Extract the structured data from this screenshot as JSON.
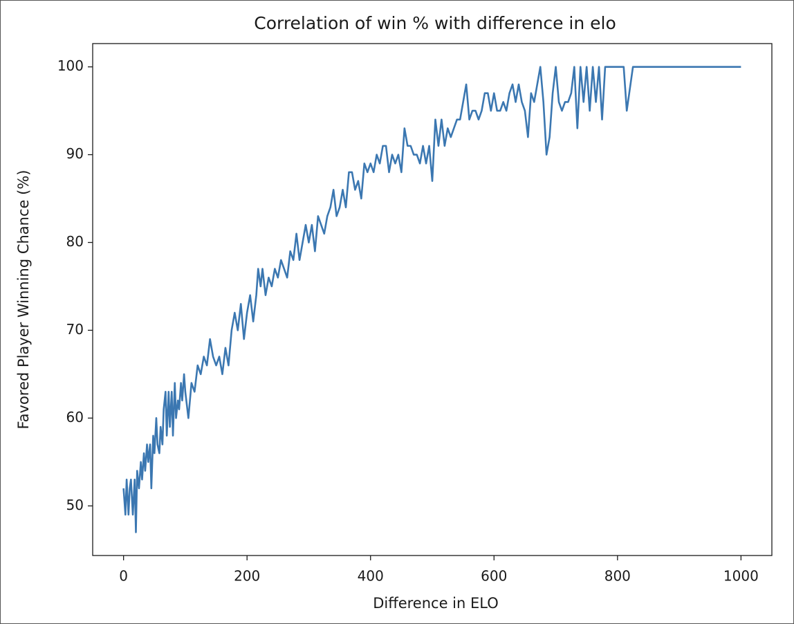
{
  "chart_data": {
    "type": "line",
    "title": "Correlation of win % with difference in elo",
    "xlabel": "Difference in ELO",
    "ylabel": "Favored Player Winning Chance (%)",
    "color": "#3b77b1",
    "xlim": [
      -50,
      1050
    ],
    "ylim": [
      44.35,
      102.65
    ],
    "xticks": [
      0,
      200,
      400,
      600,
      800,
      1000
    ],
    "yticks": [
      50,
      60,
      70,
      80,
      90,
      100
    ],
    "x": [
      0,
      3,
      5,
      8,
      10,
      12,
      15,
      18,
      20,
      22,
      25,
      28,
      30,
      33,
      35,
      38,
      40,
      43,
      45,
      48,
      50,
      53,
      55,
      58,
      60,
      63,
      65,
      68,
      70,
      73,
      75,
      78,
      80,
      83,
      85,
      88,
      90,
      93,
      95,
      98,
      100,
      105,
      110,
      115,
      120,
      125,
      130,
      135,
      140,
      145,
      150,
      155,
      160,
      165,
      170,
      175,
      180,
      185,
      190,
      195,
      200,
      205,
      210,
      215,
      218,
      222,
      225,
      230,
      235,
      240,
      245,
      250,
      255,
      260,
      265,
      270,
      275,
      280,
      285,
      290,
      295,
      300,
      305,
      310,
      315,
      320,
      325,
      330,
      335,
      340,
      345,
      350,
      355,
      360,
      365,
      370,
      375,
      380,
      385,
      390,
      395,
      400,
      405,
      410,
      415,
      420,
      425,
      430,
      435,
      440,
      445,
      450,
      455,
      460,
      465,
      470,
      475,
      480,
      485,
      490,
      495,
      500,
      505,
      510,
      515,
      520,
      525,
      530,
      535,
      540,
      545,
      550,
      555,
      560,
      565,
      570,
      575,
      580,
      585,
      590,
      595,
      600,
      605,
      610,
      615,
      620,
      625,
      630,
      635,
      640,
      645,
      650,
      655,
      660,
      665,
      670,
      675,
      680,
      685,
      690,
      695,
      700,
      705,
      710,
      715,
      720,
      725,
      730,
      735,
      740,
      745,
      750,
      755,
      760,
      765,
      770,
      775,
      780,
      790,
      800,
      810,
      815,
      825,
      840,
      1000
    ],
    "values": [
      52,
      49,
      53,
      49,
      52,
      53,
      49,
      53,
      47,
      54,
      52,
      55,
      53,
      56,
      54,
      57,
      55,
      57,
      52,
      58,
      56,
      60,
      57,
      56,
      59,
      57,
      61,
      63,
      58,
      63,
      59,
      63,
      58,
      64,
      60,
      62,
      61,
      64,
      62,
      65,
      63,
      60,
      64,
      63,
      66,
      65,
      67,
      66,
      69,
      67,
      66,
      67,
      65,
      68,
      66,
      70,
      72,
      70,
      73,
      69,
      72,
      74,
      71,
      74,
      77,
      75,
      77,
      74,
      76,
      75,
      77,
      76,
      78,
      77,
      76,
      79,
      78,
      81,
      78,
      80,
      82,
      80,
      82,
      79,
      83,
      82,
      81,
      83,
      84,
      86,
      83,
      84,
      86,
      84,
      88,
      88,
      86,
      87,
      85,
      89,
      88,
      89,
      88,
      90,
      89,
      91,
      91,
      88,
      90,
      89,
      90,
      88,
      93,
      91,
      91,
      90,
      90,
      89,
      91,
      89,
      91,
      87,
      94,
      91,
      94,
      91,
      93,
      92,
      93,
      94,
      94,
      96,
      98,
      94,
      95,
      95,
      94,
      95,
      97,
      97,
      95,
      97,
      95,
      95,
      96,
      95,
      97,
      98,
      96,
      98,
      96,
      95,
      92,
      97,
      96,
      98,
      100,
      96,
      90,
      92,
      97,
      100,
      96,
      95,
      96,
      96,
      97,
      100,
      93,
      100,
      96,
      100,
      95,
      100,
      96,
      100,
      94,
      100,
      100,
      100,
      100,
      95,
      100,
      100,
      100
    ]
  }
}
